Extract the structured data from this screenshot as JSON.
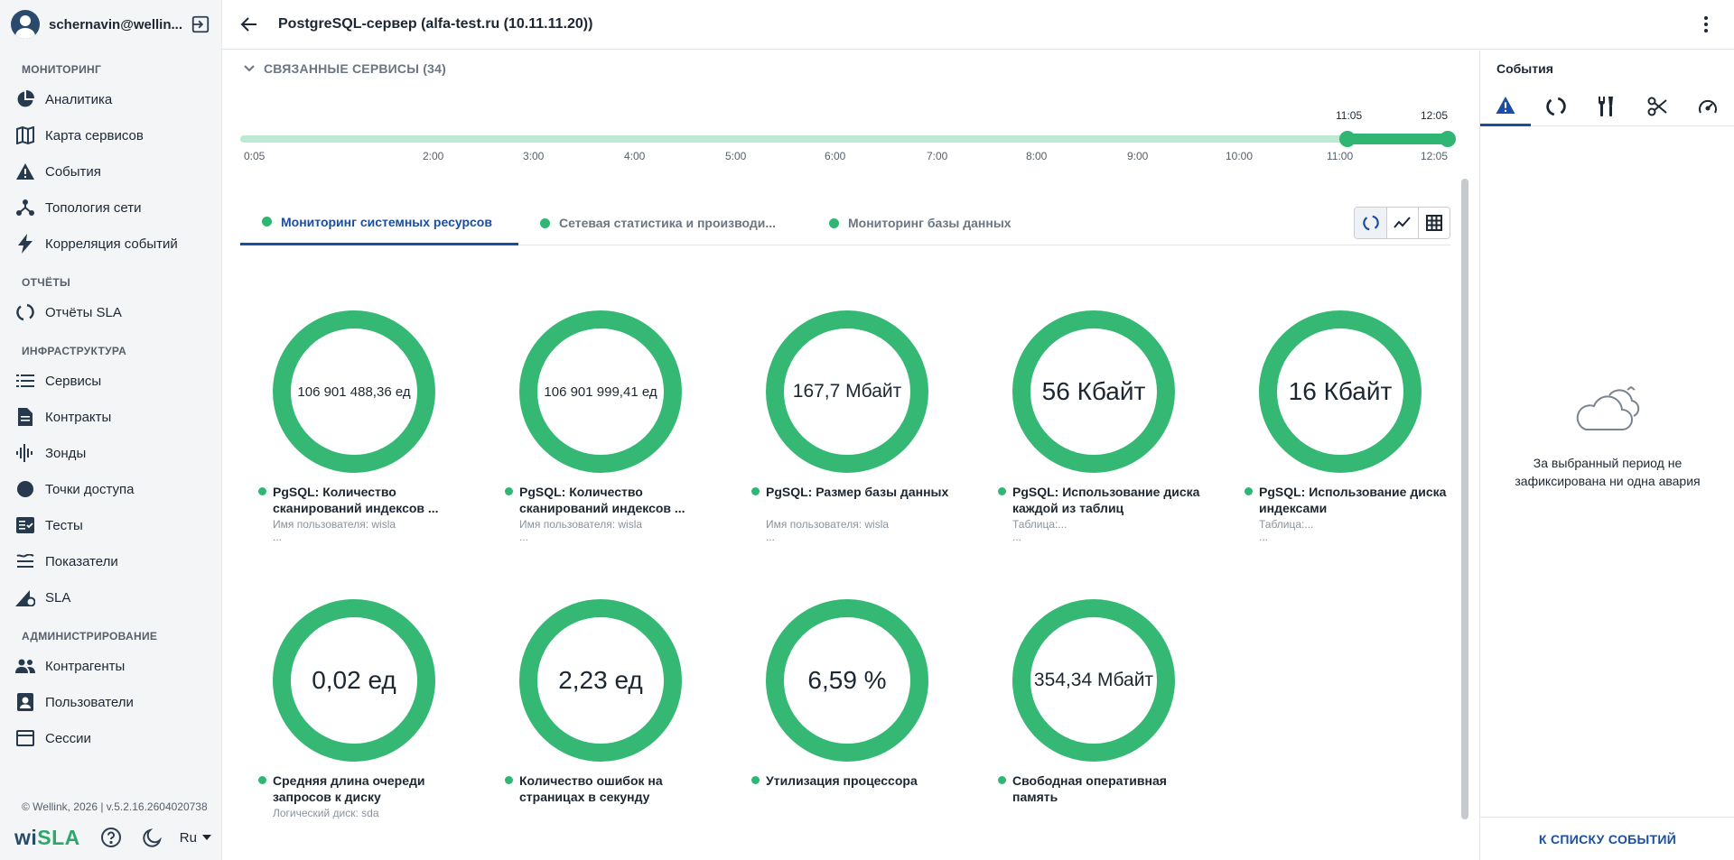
{
  "user": {
    "name": "schernavin@wellin..."
  },
  "sidebar": {
    "sections": [
      {
        "title": "МОНИТОРИНГ",
        "items": [
          {
            "label": "Аналитика",
            "icon": "pie-chart-icon"
          },
          {
            "label": "Карта сервисов",
            "icon": "map-icon"
          },
          {
            "label": "События",
            "icon": "warning-icon"
          },
          {
            "label": "Топология сети",
            "icon": "topology-icon"
          },
          {
            "label": "Корреляция событий",
            "icon": "lightning-icon"
          }
        ]
      },
      {
        "title": "ОТЧЁТЫ",
        "items": [
          {
            "label": "Отчёты SLA",
            "icon": "circle-arrows-icon"
          }
        ]
      },
      {
        "title": "ИНФРАСТРУКТУРА",
        "items": [
          {
            "label": "Сервисы",
            "icon": "list-icon"
          },
          {
            "label": "Контракты",
            "icon": "document-icon"
          },
          {
            "label": "Зонды",
            "icon": "waveform-icon"
          },
          {
            "label": "Точки доступа",
            "icon": "filled-circle-icon"
          },
          {
            "label": "Тесты",
            "icon": "checklist-icon"
          },
          {
            "label": "Показатели",
            "icon": "lines-icon"
          },
          {
            "label": "SLA",
            "icon": "sla-gear-icon"
          }
        ]
      },
      {
        "title": "АДМИНИСТРИРОВАНИЕ",
        "items": [
          {
            "label": "Контрагенты",
            "icon": "people-icon"
          },
          {
            "label": "Пользователи",
            "icon": "user-card-icon"
          },
          {
            "label": "Сессии",
            "icon": "window-icon"
          }
        ]
      }
    ],
    "copyright": "© Wellink, 2026 | v.5.2.16.2604020738",
    "logo": "wiSLA",
    "language": "Ru"
  },
  "header": {
    "title": "PostgreSQL-сервер (alfa-test.ru (10.11.11.20))"
  },
  "linked_services": "СВЯЗАННЫЕ СЕРВИСЫ (34)",
  "timeline": {
    "labels": [
      "0:05",
      "2:00",
      "3:00",
      "4:00",
      "5:00",
      "6:00",
      "7:00",
      "8:00",
      "9:00",
      "10:00",
      "11:00",
      "12:05"
    ],
    "selection_start": "11:05",
    "selection_end": "12:05"
  },
  "tabs": [
    {
      "label": "Мониторинг системных ресурсов",
      "active": true
    },
    {
      "label": "Сетевая статистика и производи...",
      "active": false
    },
    {
      "label": "Мониторинг базы данных",
      "active": false
    }
  ],
  "metrics": [
    {
      "value": "106 901 488,36 ед",
      "title": "PgSQL: Количество сканирований индексов ...",
      "sub": "Имя пользователя: wisla",
      "sub2": "..."
    },
    {
      "value": "106 901 999,41 ед",
      "title": "PgSQL: Количество сканирований индексов ...",
      "sub": "Имя пользователя: wisla",
      "sub2": "..."
    },
    {
      "value": "167,7 Мбайт",
      "title": "PgSQL: Размер базы данных",
      "sub": "Имя пользователя: wisla",
      "sub2": "..."
    },
    {
      "value": "56 Кбайт",
      "title": "PgSQL: Использование диска каждой из таблиц",
      "sub": "Таблица:...",
      "sub2": "..."
    },
    {
      "value": "16 Кбайт",
      "title": "PgSQL: Использование диска индексами",
      "sub": "Таблица:...",
      "sub2": "..."
    },
    {
      "value": "0,02 ед",
      "title": "Средняя длина очереди запросов к диску",
      "sub": "Логический диск: sda",
      "sub2": ""
    },
    {
      "value": "2,23 ед",
      "title": "Количество ошибок на страницах в секунду",
      "sub": "",
      "sub2": ""
    },
    {
      "value": "6,59 %",
      "title": "Утилизация процессора",
      "sub": "",
      "sub2": ""
    },
    {
      "value": "354,34 Мбайт",
      "title": "Свободная оперативная память",
      "sub": "",
      "sub2": ""
    }
  ],
  "events_panel": {
    "title": "События",
    "tabs": [
      "warning-icon",
      "circle-arrows-icon",
      "tools-icon",
      "scissors-icon",
      "speedometer-icon"
    ],
    "empty_text": "За выбранный период не зафиксирована ни одна авария",
    "footer": "К СПИСКУ СОБЫТИЙ"
  },
  "colors": {
    "accent": "#1b4ea0",
    "green": "#35b874",
    "track": "#bde8d2"
  }
}
